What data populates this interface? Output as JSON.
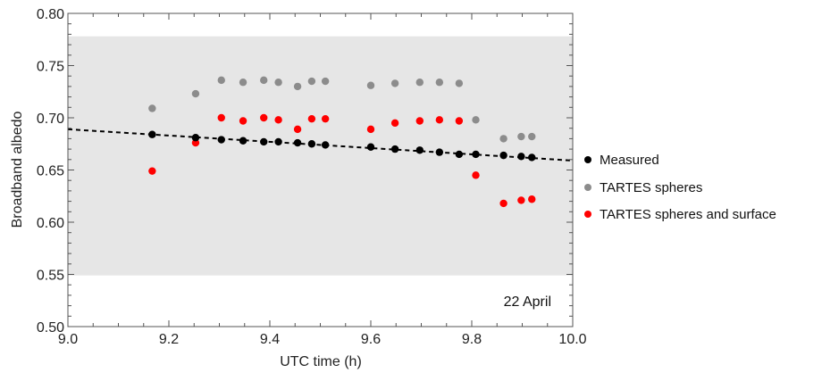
{
  "chart_data": {
    "type": "scatter",
    "xlabel": "UTC time (h)",
    "ylabel": "Broadband albedo",
    "xlim": [
      9.0,
      10.0
    ],
    "ylim": [
      0.5,
      0.8
    ],
    "x_ticks": [
      "9.0",
      "9.2",
      "9.4",
      "9.6",
      "9.8",
      "10.0"
    ],
    "y_ticks": [
      "0.50",
      "0.55",
      "0.60",
      "0.65",
      "0.70",
      "0.75",
      "0.80"
    ],
    "annotation": "22 April",
    "shaded_band": {
      "y_range": [
        0.549,
        0.778
      ],
      "color": "#e6e6e6"
    },
    "trend_line": {
      "x": [
        9.0,
        10.0
      ],
      "y": [
        0.689,
        0.659
      ],
      "color": "#000000",
      "style": "dashed"
    },
    "legend_position": "right",
    "series": [
      {
        "name": "Measured",
        "color": "#000000",
        "x": [
          9.167,
          9.253,
          9.304,
          9.347,
          9.388,
          9.417,
          9.455,
          9.483,
          9.51,
          9.6,
          9.648,
          9.697,
          9.736,
          9.775,
          9.808,
          9.863,
          9.898,
          9.919
        ],
        "y": [
          0.684,
          0.681,
          0.679,
          0.678,
          0.677,
          0.677,
          0.676,
          0.675,
          0.674,
          0.672,
          0.67,
          0.669,
          0.667,
          0.665,
          0.665,
          0.664,
          0.663,
          0.662
        ]
      },
      {
        "name": "TARTES spheres",
        "color": "#8c8c8c",
        "x": [
          9.167,
          9.253,
          9.304,
          9.347,
          9.388,
          9.417,
          9.455,
          9.483,
          9.51,
          9.6,
          9.648,
          9.697,
          9.736,
          9.775,
          9.808,
          9.863,
          9.898,
          9.919
        ],
        "y": [
          0.709,
          0.723,
          0.736,
          0.734,
          0.736,
          0.734,
          0.73,
          0.735,
          0.735,
          0.731,
          0.733,
          0.734,
          0.734,
          0.733,
          0.698,
          0.68,
          0.682,
          0.682
        ]
      },
      {
        "name": "TARTES spheres and surface",
        "color": "#ff0000",
        "x": [
          9.167,
          9.253,
          9.304,
          9.347,
          9.388,
          9.417,
          9.455,
          9.483,
          9.51,
          9.6,
          9.648,
          9.697,
          9.736,
          9.775,
          9.808,
          9.863,
          9.898,
          9.919
        ],
        "y": [
          0.649,
          0.676,
          0.7,
          0.697,
          0.7,
          0.698,
          0.689,
          0.699,
          0.699,
          0.689,
          0.695,
          0.697,
          0.698,
          0.697,
          0.645,
          0.618,
          0.621,
          0.622
        ]
      }
    ]
  }
}
